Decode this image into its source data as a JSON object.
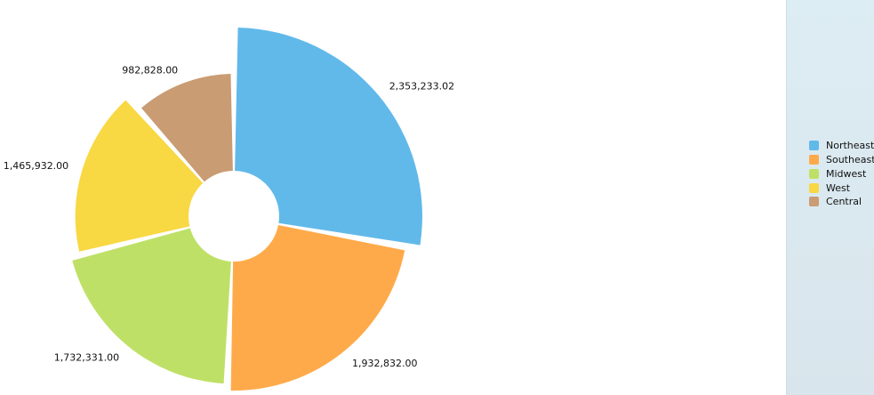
{
  "chart_data": {
    "type": "pie",
    "variant": "rose-donut",
    "title": "",
    "legend_position": "right",
    "categories": [
      "Northeast",
      "Southeast",
      "Midwest",
      "West",
      "Central"
    ],
    "values": [
      2353233.02,
      1932832.0,
      1732331.0,
      1465932.0,
      982828.0
    ],
    "value_labels": [
      "2,353,233.02",
      "1,932,832.00",
      "1,732,331.00",
      "1,465,932.00",
      "982,828.00"
    ],
    "colors": [
      "#61b9ea",
      "#ffaa4a",
      "#bfe067",
      "#f8d843",
      "#c99c73"
    ]
  },
  "legend": {
    "items": [
      {
        "label": "Northeast",
        "color": "#61b9ea"
      },
      {
        "label": "Southeast",
        "color": "#ffaa4a"
      },
      {
        "label": "Midwest",
        "color": "#bfe067"
      },
      {
        "label": "West",
        "color": "#f8d843"
      },
      {
        "label": "Central",
        "color": "#c99c73"
      }
    ]
  }
}
